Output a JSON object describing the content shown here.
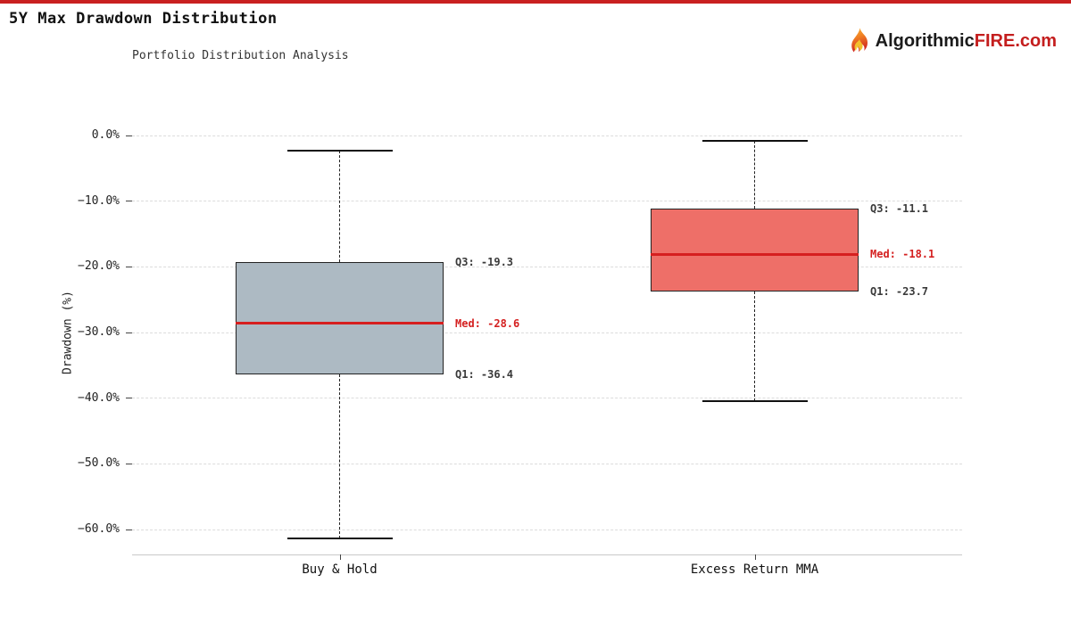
{
  "page": {
    "accent_bar_color": "#c92020",
    "background": "#ffffff"
  },
  "header": {
    "title": "5Y Max Drawdown Distribution",
    "subtitle": "Portfolio Distribution Analysis",
    "logo": {
      "icon": "flame-icon",
      "brand_prefix": "Algorithmic",
      "brand_highlight": "FIRE",
      "brand_suffix": ".com",
      "prefix_color": "#1b1b1b",
      "highlight_color": "#c41e1e"
    }
  },
  "chart_data": {
    "type": "box",
    "title": "5Y Max Drawdown Distribution",
    "subtitle": "Portfolio Distribution Analysis",
    "ylabel": "Drawdown (%)",
    "ylim": [
      -64,
      2
    ],
    "grid": {
      "horizontal": true,
      "style": "dashed"
    },
    "legend": "none",
    "yticks": [
      {
        "value": 0,
        "label": "0.0%"
      },
      {
        "value": -10,
        "label": "−10.0%"
      },
      {
        "value": -20,
        "label": "−20.0%"
      },
      {
        "value": -30,
        "label": "−30.0%"
      },
      {
        "value": -40,
        "label": "−40.0%"
      },
      {
        "value": -50,
        "label": "−50.0%"
      },
      {
        "value": -60,
        "label": "−60.0%"
      }
    ],
    "categories": [
      "Buy & Hold",
      "Excess Return MMA"
    ],
    "boxes": [
      {
        "label": "Buy & Hold",
        "whisker_high": -2.3,
        "q3": -19.3,
        "median": -28.6,
        "q1": -36.4,
        "whisker_low": -61.4,
        "fill_color": "#adbac3",
        "annotations": {
          "q3": "Q3: -19.3",
          "med": "Med: -28.6",
          "q1": "Q1: -36.4"
        }
      },
      {
        "label": "Excess Return MMA",
        "whisker_high": -0.8,
        "q3": -11.1,
        "median": -18.1,
        "q1": -23.7,
        "whisker_low": -40.4,
        "fill_color": "#ee6f68",
        "annotations": {
          "q3": "Q3: -11.1",
          "med": "Med: -18.1",
          "q1": "Q1: -23.7"
        }
      }
    ],
    "median_color": "#d61f1f",
    "annotation_color": "#3a3a3a",
    "median_annotation_color": "#d42020",
    "box_edge_color": "#222222",
    "whisker_color": "#222222",
    "gridline_color": "#dcdcdc",
    "axis_line_color": "#c9c9c9"
  }
}
